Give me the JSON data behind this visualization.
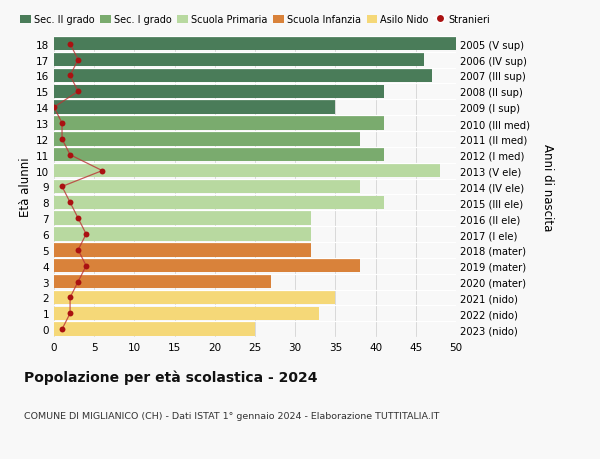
{
  "ages": [
    18,
    17,
    16,
    15,
    14,
    13,
    12,
    11,
    10,
    9,
    8,
    7,
    6,
    5,
    4,
    3,
    2,
    1,
    0
  ],
  "right_labels": [
    "2005 (V sup)",
    "2006 (IV sup)",
    "2007 (III sup)",
    "2008 (II sup)",
    "2009 (I sup)",
    "2010 (III med)",
    "2011 (II med)",
    "2012 (I med)",
    "2013 (V ele)",
    "2014 (IV ele)",
    "2015 (III ele)",
    "2016 (II ele)",
    "2017 (I ele)",
    "2018 (mater)",
    "2019 (mater)",
    "2020 (mater)",
    "2021 (nido)",
    "2022 (nido)",
    "2023 (nido)"
  ],
  "bar_values": [
    50,
    46,
    47,
    41,
    35,
    41,
    38,
    41,
    48,
    38,
    41,
    32,
    32,
    32,
    38,
    27,
    35,
    33,
    25
  ],
  "bar_colors": [
    "#4a7c59",
    "#4a7c59",
    "#4a7c59",
    "#4a7c59",
    "#4a7c59",
    "#7aab6e",
    "#7aab6e",
    "#7aab6e",
    "#b8d9a0",
    "#b8d9a0",
    "#b8d9a0",
    "#b8d9a0",
    "#b8d9a0",
    "#d9823a",
    "#d9823a",
    "#d9823a",
    "#f5d878",
    "#f5d878",
    "#f5d878"
  ],
  "stranieri_values": [
    2.0,
    3.0,
    2.0,
    3.0,
    0.0,
    1.0,
    1.0,
    2.0,
    6.0,
    1.0,
    2.0,
    3.0,
    4.0,
    3.0,
    4.0,
    3.0,
    2.0,
    2.0,
    1.0
  ],
  "xlim": [
    0,
    50
  ],
  "xticks": [
    0,
    5,
    10,
    15,
    20,
    25,
    30,
    35,
    40,
    45,
    50
  ],
  "ylabel_left": "Età alunni",
  "ylabel_right": "Anni di nascita",
  "title_bold": "Popolazione per età scolastica - 2024",
  "subtitle": "COMUNE DI MIGLIANICO (CH) - Dati ISTAT 1° gennaio 2024 - Elaborazione TUTTITALIA.IT",
  "legend_labels": [
    "Sec. II grado",
    "Sec. I grado",
    "Scuola Primaria",
    "Scuola Infanzia",
    "Asilo Nido",
    "Stranieri"
  ],
  "legend_colors": [
    "#4a7c59",
    "#7aab6e",
    "#b8d9a0",
    "#d9823a",
    "#f5d878",
    "#aa1111"
  ],
  "bar_height": 0.85,
  "background_color": "#f8f8f8",
  "grid_color": "#cccccc",
  "stranieri_line_color": "#bb3333",
  "stranieri_dot_color": "#aa1111"
}
